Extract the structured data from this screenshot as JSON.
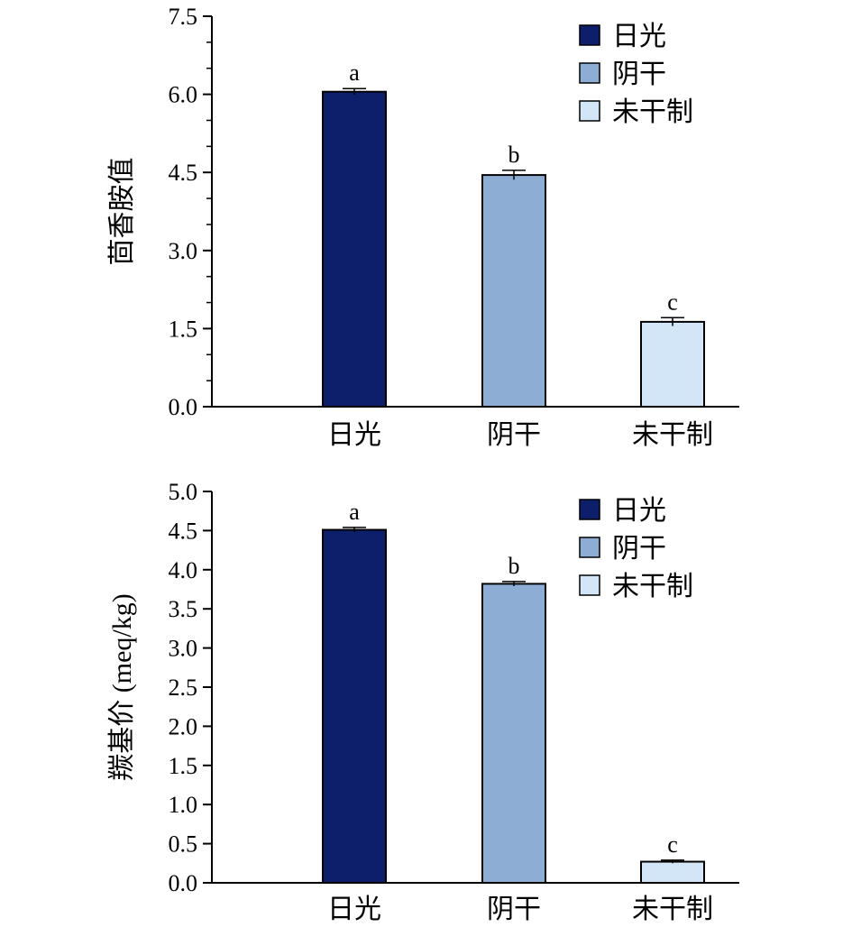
{
  "colors": {
    "sun": "#0d1f6b",
    "shade": "#8eadd5",
    "undried": "#d3e6f8",
    "stroke": "#000000"
  },
  "chart_data": [
    {
      "type": "bar",
      "title": "",
      "xlabel": "",
      "ylabel": "茴香胺值",
      "categories": [
        "日光",
        "阴干",
        "未干制"
      ],
      "values": [
        6.05,
        4.45,
        1.63
      ],
      "errors": [
        0.06,
        0.09,
        0.08
      ],
      "significance": [
        "a",
        "b",
        "c"
      ],
      "ylim": [
        0,
        7.5
      ],
      "yticks": [
        0.0,
        1.5,
        3.0,
        4.5,
        6.0,
        7.5
      ],
      "ytick_labels": [
        "0.0",
        "1.5",
        "3.0",
        "4.5",
        "6.0",
        "7.5"
      ],
      "legend": [
        "日光",
        "阴干",
        "未干制"
      ],
      "legend_position": "top-right",
      "grid": false
    },
    {
      "type": "bar",
      "title": "",
      "xlabel": "",
      "ylabel": "羰基价 (meq/kg)",
      "categories": [
        "日光",
        "阴干",
        "未干制"
      ],
      "values": [
        4.51,
        3.82,
        0.27
      ],
      "errors": [
        0.03,
        0.03,
        0.02
      ],
      "significance": [
        "a",
        "b",
        "c"
      ],
      "ylim": [
        0,
        5.0
      ],
      "yticks": [
        0.0,
        0.5,
        1.0,
        1.5,
        2.0,
        2.5,
        3.0,
        3.5,
        4.0,
        4.5,
        5.0
      ],
      "ytick_labels": [
        "0.0",
        "0.5",
        "1.0",
        "1.5",
        "2.0",
        "2.5",
        "3.0",
        "3.5",
        "4.0",
        "4.5",
        "5.0"
      ],
      "legend": [
        "日光",
        "阴干",
        "未干制"
      ],
      "legend_position": "top-right",
      "grid": false
    }
  ]
}
